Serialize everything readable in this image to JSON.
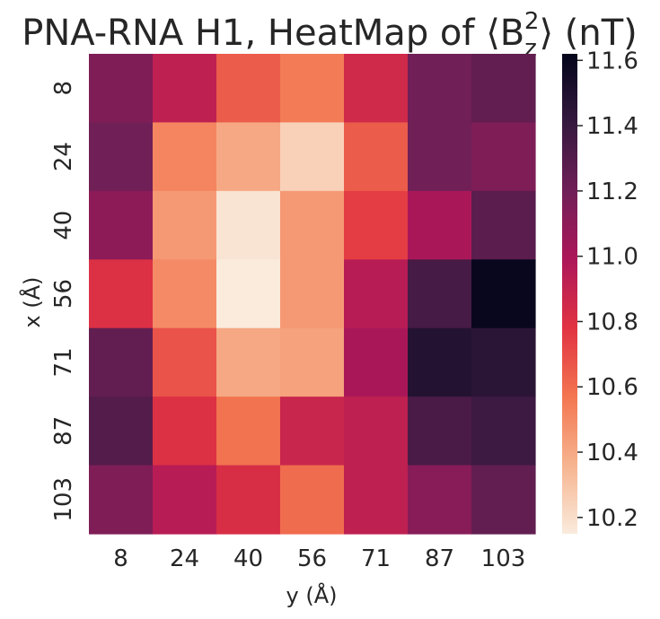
{
  "chart_data": {
    "type": "heatmap",
    "title": "PNA-RNA H1, HeatMap of ⟨B",
    "title_sub": "z",
    "title_sup": "2",
    "title_end": "⟩ (nT)",
    "xlabel": "y (Å)",
    "ylabel": "x (Å)",
    "x_categories": [
      "8",
      "24",
      "40",
      "56",
      "71",
      "87",
      "103"
    ],
    "y_categories": [
      "8",
      "24",
      "40",
      "56",
      "71",
      "87",
      "103"
    ],
    "values": [
      [
        11.15,
        10.92,
        10.65,
        10.55,
        10.85,
        11.2,
        11.25
      ],
      [
        11.2,
        10.52,
        10.4,
        10.25,
        10.65,
        11.2,
        11.15
      ],
      [
        11.1,
        10.45,
        10.18,
        10.45,
        10.75,
        11.0,
        11.28
      ],
      [
        10.8,
        10.5,
        10.15,
        10.45,
        10.95,
        11.35,
        11.6
      ],
      [
        11.25,
        10.68,
        10.4,
        10.42,
        11.0,
        11.48,
        11.45
      ],
      [
        11.3,
        10.8,
        10.58,
        10.88,
        10.92,
        11.33,
        11.38
      ],
      [
        11.15,
        10.95,
        10.82,
        10.6,
        10.92,
        11.12,
        11.25
      ]
    ],
    "colorbar": {
      "min": 10.15,
      "max": 11.62,
      "ticks": [
        "10.2",
        "10.4",
        "10.6",
        "10.8",
        "11.0",
        "11.2",
        "11.4",
        "11.6"
      ]
    },
    "colormap": "rocket_r",
    "colormap_stops": [
      "#faebdd",
      "#f6b48f",
      "#f37651",
      "#e13342",
      "#ad1759",
      "#701f57",
      "#35193e",
      "#03051a"
    ]
  }
}
